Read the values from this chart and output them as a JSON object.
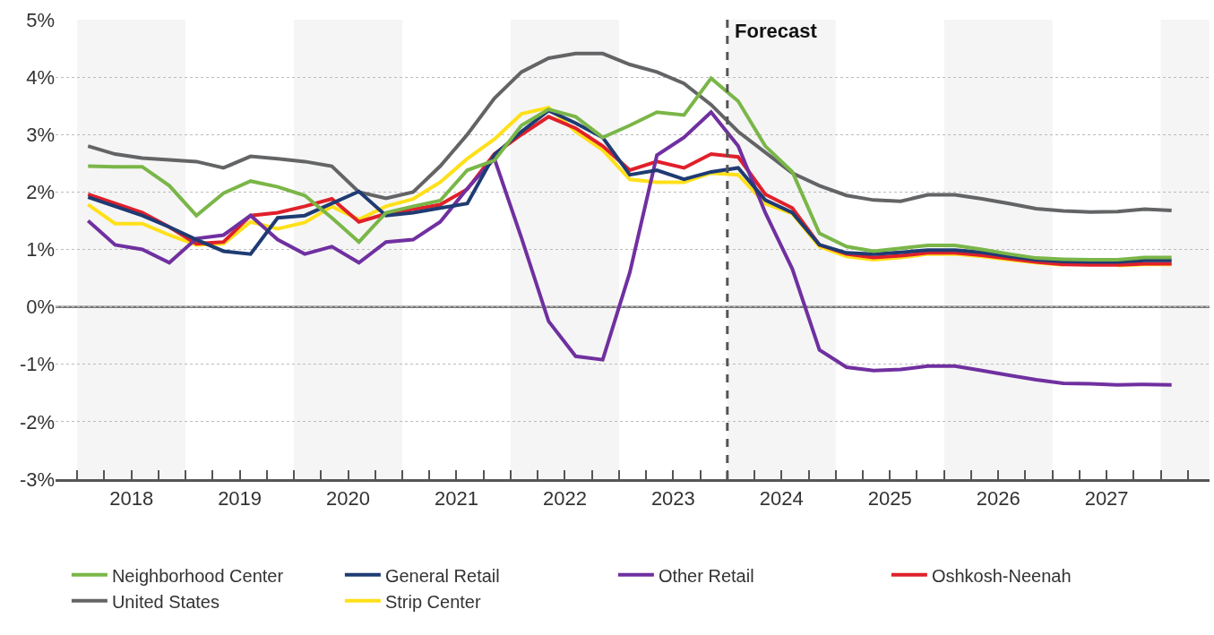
{
  "chart_data": {
    "type": "line",
    "x": [
      2018.1,
      2018.35,
      2018.6,
      2018.85,
      2019.1,
      2019.35,
      2019.6,
      2019.85,
      2020.1,
      2020.35,
      2020.6,
      2020.85,
      2021.1,
      2021.35,
      2021.6,
      2021.85,
      2022.1,
      2022.35,
      2022.6,
      2022.85,
      2023.1,
      2023.35,
      2023.6,
      2023.85,
      2024.1,
      2024.35,
      2024.6,
      2024.85,
      2025.1,
      2025.35,
      2025.6,
      2025.85,
      2026.1,
      2026.35,
      2026.6,
      2026.85,
      2027.1,
      2027.35,
      2027.6,
      2027.85,
      2028.1
    ],
    "series": [
      {
        "name": "Neighborhood Center",
        "color": "#7ab648",
        "values": [
          2.45,
          2.44,
          2.44,
          2.11,
          1.59,
          1.98,
          2.19,
          2.09,
          1.94,
          1.55,
          1.13,
          1.64,
          1.75,
          1.85,
          2.38,
          2.55,
          3.16,
          3.44,
          3.31,
          2.95,
          3.16,
          3.39,
          3.34,
          3.98,
          3.58,
          2.8,
          2.35,
          1.28,
          1.05,
          0.97,
          1.02,
          1.07,
          1.07,
          1.0,
          0.92,
          0.85,
          0.83,
          0.82,
          0.82,
          0.86,
          0.86
        ]
      },
      {
        "name": "General Retail",
        "color": "#1f3b73",
        "values": [
          1.91,
          1.75,
          1.59,
          1.39,
          1.17,
          0.97,
          0.92,
          1.55,
          1.59,
          1.8,
          2.01,
          1.59,
          1.64,
          1.72,
          1.8,
          2.65,
          3.05,
          3.42,
          3.2,
          2.95,
          2.3,
          2.38,
          2.22,
          2.35,
          2.42,
          1.86,
          1.64,
          1.08,
          0.94,
          0.92,
          0.95,
          0.99,
          0.99,
          0.95,
          0.88,
          0.82,
          0.79,
          0.78,
          0.78,
          0.81,
          0.81
        ]
      },
      {
        "name": "Other Retail",
        "color": "#7030a0",
        "values": [
          1.5,
          1.08,
          1.0,
          0.77,
          1.19,
          1.25,
          1.59,
          1.17,
          0.92,
          1.05,
          0.77,
          1.13,
          1.17,
          1.48,
          2.06,
          2.58,
          1.2,
          -0.25,
          -0.86,
          -0.92,
          0.6,
          2.64,
          2.95,
          3.39,
          2.8,
          1.64,
          0.66,
          -0.75,
          -1.05,
          -1.11,
          -1.09,
          -1.03,
          -1.03,
          -1.11,
          -1.19,
          -1.27,
          -1.33,
          -1.34,
          -1.36,
          -1.35,
          -1.36
        ]
      },
      {
        "name": "Oshkosh-Neenah",
        "color": "#e0202a",
        "values": [
          1.96,
          1.8,
          1.64,
          1.39,
          1.1,
          1.13,
          1.59,
          1.64,
          1.75,
          1.88,
          1.48,
          1.62,
          1.7,
          1.78,
          2.05,
          2.66,
          3.0,
          3.31,
          3.11,
          2.8,
          2.38,
          2.53,
          2.42,
          2.66,
          2.61,
          1.96,
          1.72,
          1.08,
          0.92,
          0.86,
          0.89,
          0.94,
          0.94,
          0.9,
          0.84,
          0.78,
          0.74,
          0.73,
          0.73,
          0.75,
          0.75
        ]
      },
      {
        "name": "United States",
        "color": "#636466",
        "values": [
          2.8,
          2.66,
          2.59,
          2.56,
          2.53,
          2.42,
          2.62,
          2.58,
          2.53,
          2.45,
          2.0,
          1.89,
          2.0,
          2.45,
          3.0,
          3.63,
          4.09,
          4.33,
          4.41,
          4.41,
          4.22,
          4.09,
          3.89,
          3.52,
          3.05,
          2.69,
          2.33,
          2.11,
          1.94,
          1.86,
          1.84,
          1.95,
          1.95,
          1.88,
          1.8,
          1.71,
          1.67,
          1.65,
          1.66,
          1.7,
          1.68
        ]
      },
      {
        "name": "Strip Center",
        "color": "#ffe01a",
        "values": [
          1.78,
          1.45,
          1.45,
          1.25,
          1.08,
          1.1,
          1.48,
          1.36,
          1.47,
          1.75,
          1.52,
          1.75,
          1.88,
          2.17,
          2.58,
          2.92,
          3.36,
          3.47,
          3.05,
          2.73,
          2.22,
          2.17,
          2.17,
          2.33,
          2.3,
          1.8,
          1.62,
          1.05,
          0.88,
          0.82,
          0.86,
          0.92,
          0.92,
          0.88,
          0.82,
          0.77,
          0.73,
          null,
          0.72,
          0.74,
          0.74
        ]
      }
    ],
    "xlim": [
      2017.8,
      2028.45
    ],
    "xticks": [
      {
        "value": 2018,
        "label": null
      },
      {
        "value": 2018.25,
        "label": null
      },
      {
        "value": 2018.5,
        "label": "2018"
      },
      {
        "value": 2018.75,
        "label": null
      },
      {
        "value": 2019,
        "label": null
      },
      {
        "value": 2019.25,
        "label": null
      },
      {
        "value": 2019.5,
        "label": "2019"
      },
      {
        "value": 2019.75,
        "label": null
      },
      {
        "value": 2020,
        "label": null
      },
      {
        "value": 2020.25,
        "label": null
      },
      {
        "value": 2020.5,
        "label": "2020"
      },
      {
        "value": 2020.75,
        "label": null
      },
      {
        "value": 2021,
        "label": null
      },
      {
        "value": 2021.25,
        "label": null
      },
      {
        "value": 2021.5,
        "label": "2021"
      },
      {
        "value": 2021.75,
        "label": null
      },
      {
        "value": 2022,
        "label": null
      },
      {
        "value": 2022.25,
        "label": null
      },
      {
        "value": 2022.5,
        "label": "2022"
      },
      {
        "value": 2022.75,
        "label": null
      },
      {
        "value": 2023,
        "label": null
      },
      {
        "value": 2023.25,
        "label": null
      },
      {
        "value": 2023.5,
        "label": "2023"
      },
      {
        "value": 2023.75,
        "label": null
      },
      {
        "value": 2024,
        "label": null
      },
      {
        "value": 2024.25,
        "label": null
      },
      {
        "value": 2024.5,
        "label": "2024"
      },
      {
        "value": 2024.75,
        "label": null
      },
      {
        "value": 2025,
        "label": null
      },
      {
        "value": 2025.25,
        "label": null
      },
      {
        "value": 2025.5,
        "label": "2025"
      },
      {
        "value": 2025.75,
        "label": null
      },
      {
        "value": 2026,
        "label": null
      },
      {
        "value": 2026.25,
        "label": null
      },
      {
        "value": 2026.5,
        "label": "2026"
      },
      {
        "value": 2026.75,
        "label": null
      },
      {
        "value": 2027,
        "label": null
      },
      {
        "value": 2027.25,
        "label": null
      },
      {
        "value": 2027.5,
        "label": "2027"
      },
      {
        "value": 2027.75,
        "label": null
      },
      {
        "value": 2028,
        "label": null
      },
      {
        "value": 2028.25,
        "label": null
      }
    ],
    "ylim": [
      -3,
      5
    ],
    "yticks": [
      {
        "value": -3,
        "label": "-3%"
      },
      {
        "value": -2,
        "label": "-2%"
      },
      {
        "value": -1,
        "label": "-1%"
      },
      {
        "value": 0,
        "label": "0%"
      },
      {
        "value": 1,
        "label": "1%"
      },
      {
        "value": 2,
        "label": "2%"
      },
      {
        "value": 3,
        "label": "3%"
      },
      {
        "value": 4,
        "label": "4%"
      },
      {
        "value": 5,
        "label": "5%"
      }
    ],
    "bands": [
      {
        "axis": "x",
        "from": 2018,
        "to": 2019,
        "color": "#f5f5f5"
      },
      {
        "axis": "x",
        "from": 2020,
        "to": 2021,
        "color": "#f5f5f5"
      },
      {
        "axis": "x",
        "from": 2022,
        "to": 2023,
        "color": "#f5f5f5"
      },
      {
        "axis": "x",
        "from": 2024,
        "to": 2025,
        "color": "#f5f5f5"
      },
      {
        "axis": "x",
        "from": 2026,
        "to": 2027,
        "color": "#f5f5f5"
      },
      {
        "axis": "x",
        "from": 2028,
        "to": 2028.45,
        "color": "#f5f5f5"
      }
    ],
    "ref_lines": [
      {
        "axis": "x",
        "value": 2024,
        "label": "Forecast",
        "color": "#555555",
        "line_style": "dashed"
      },
      {
        "axis": "y",
        "value": 0,
        "color": "#777777",
        "line_style": "solid"
      }
    ],
    "grid": "y",
    "legend": "bottom",
    "marker": "none",
    "line_style": "solid"
  }
}
